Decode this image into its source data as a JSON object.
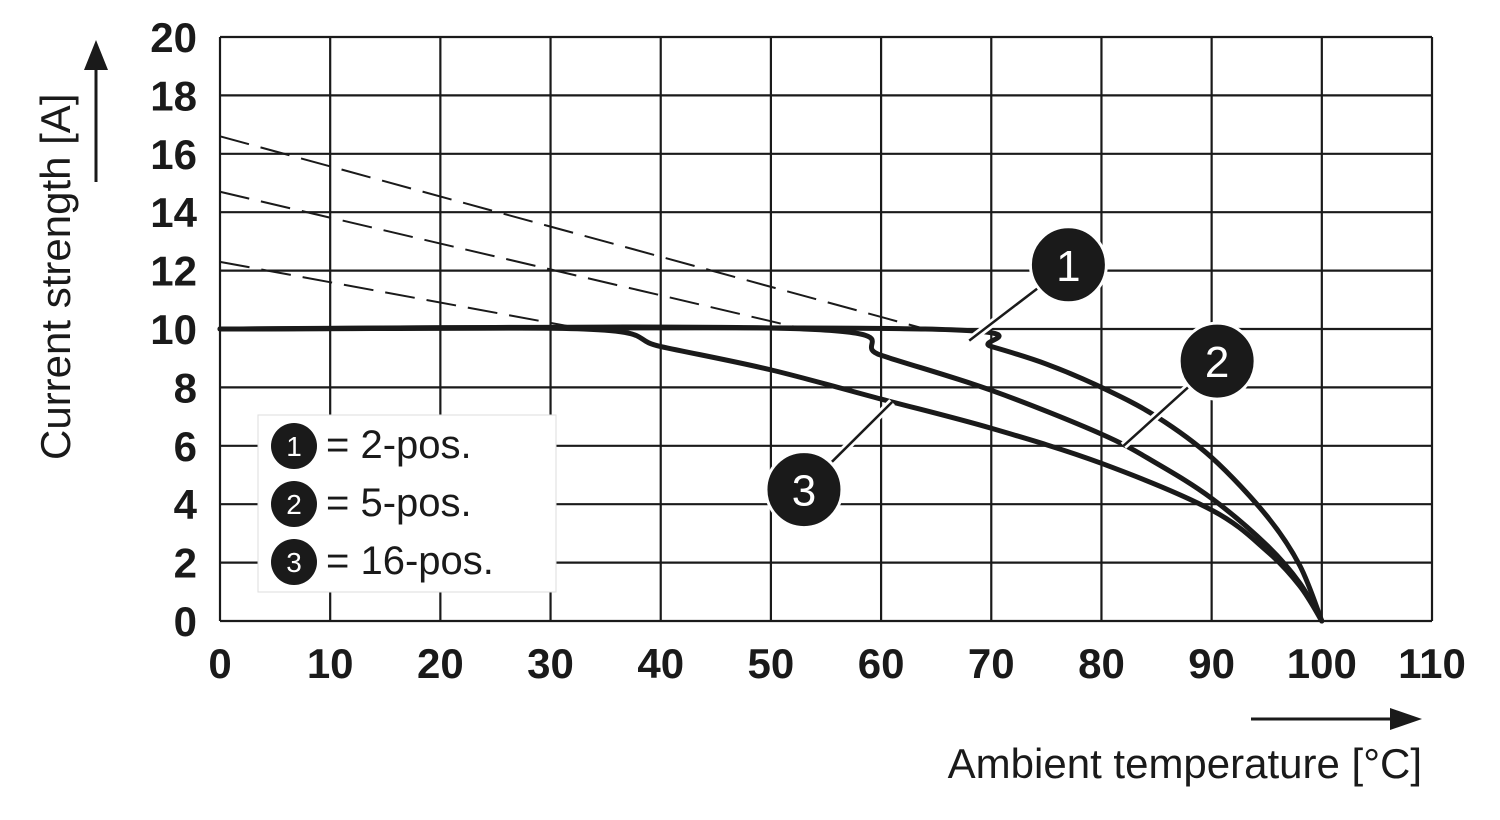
{
  "chart_data": {
    "type": "line",
    "xlabel": "Ambient temperature [°C]",
    "ylabel": "Current strength [A]",
    "xlim": [
      0,
      110
    ],
    "ylim": [
      0,
      20
    ],
    "x_ticks": [
      "0",
      "10",
      "20",
      "30",
      "40",
      "50",
      "60",
      "70",
      "80",
      "90",
      "100",
      "110"
    ],
    "y_ticks": [
      "0",
      "2",
      "4",
      "6",
      "8",
      "10",
      "12",
      "14",
      "16",
      "18",
      "20"
    ],
    "grid": true,
    "legend_position": "bottom-left",
    "series": [
      {
        "name": "1",
        "legend_label": "= 2-pos.",
        "solid": [
          [
            0,
            10
          ],
          [
            64,
            10
          ],
          [
            70,
            9.4
          ],
          [
            75,
            8.8
          ],
          [
            80,
            8.0
          ],
          [
            85,
            7.0
          ],
          [
            90,
            5.6
          ],
          [
            95,
            3.6
          ],
          [
            98,
            1.9
          ],
          [
            100,
            0
          ]
        ],
        "dashed": [
          [
            0,
            16.6
          ],
          [
            64,
            10
          ]
        ]
      },
      {
        "name": "2",
        "legend_label": "= 5-pos.",
        "solid": [
          [
            0,
            10
          ],
          [
            53,
            10
          ],
          [
            60,
            9.1
          ],
          [
            70,
            7.9
          ],
          [
            80,
            6.4
          ],
          [
            85,
            5.4
          ],
          [
            90,
            4.2
          ],
          [
            95,
            2.6
          ],
          [
            98,
            1.3
          ],
          [
            100,
            0
          ]
        ],
        "dashed": [
          [
            0,
            14.7
          ],
          [
            53,
            10
          ]
        ]
      },
      {
        "name": "3",
        "legend_label": "= 16-pos.",
        "solid": [
          [
            0,
            10
          ],
          [
            33,
            10
          ],
          [
            40,
            9.4
          ],
          [
            50,
            8.6
          ],
          [
            60,
            7.6
          ],
          [
            70,
            6.6
          ],
          [
            80,
            5.4
          ],
          [
            90,
            3.8
          ],
          [
            95,
            2.4
          ],
          [
            98,
            1.2
          ],
          [
            100,
            0
          ]
        ],
        "dashed": [
          [
            0,
            12.3
          ],
          [
            33,
            10
          ]
        ]
      }
    ],
    "callouts": [
      {
        "label": "1",
        "series": 0,
        "at_x": 68,
        "bubble_x": 77,
        "bubble_y": 12.2
      },
      {
        "label": "2",
        "series": 1,
        "at_x": 82,
        "bubble_x": 90.5,
        "bubble_y": 8.9
      },
      {
        "label": "3",
        "series": 2,
        "at_x": 61,
        "bubble_x": 53,
        "bubble_y": 4.5
      }
    ]
  }
}
